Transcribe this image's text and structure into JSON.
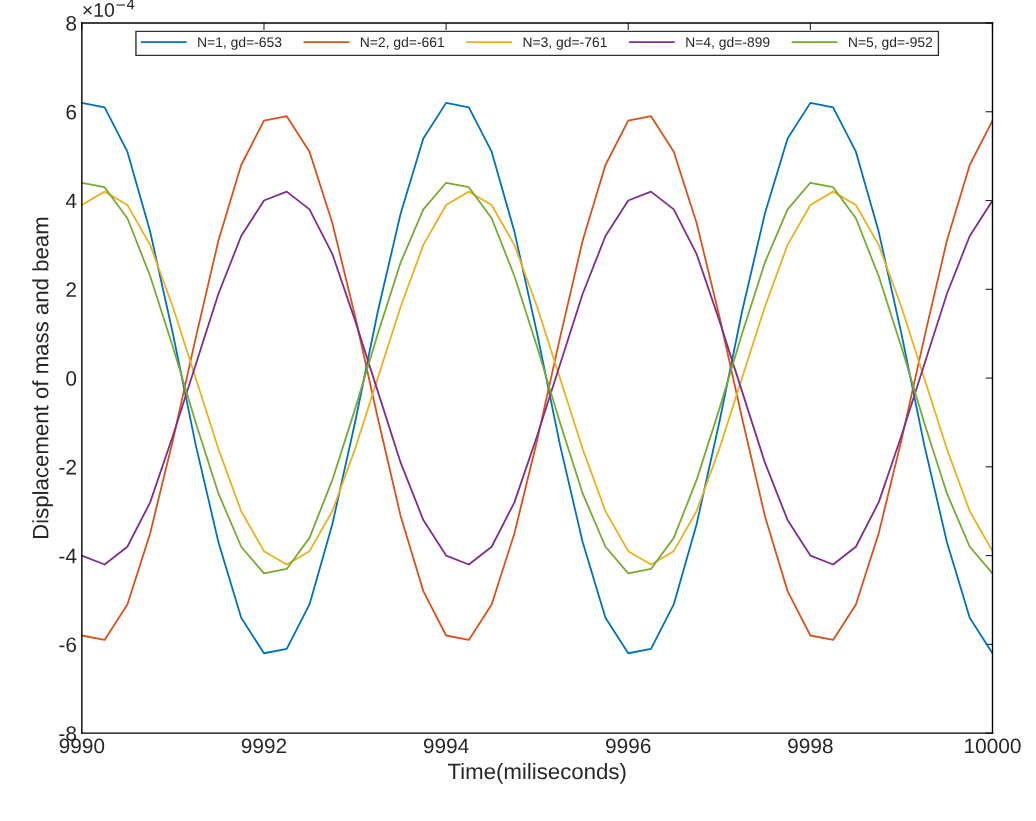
{
  "chart_data": {
    "type": "line",
    "xlabel": "Time(miliseconds)",
    "ylabel": "Displacement of mass and beam",
    "annotations": [
      "×10$^{−4}$"
    ],
    "x": [
      9990,
      9990.25,
      9990.5,
      9990.75,
      9991,
      9991.25,
      9991.5,
      9991.75,
      9992,
      9992.25,
      9992.5,
      9992.75,
      9993,
      9993.25,
      9993.5,
      9993.75,
      9994,
      9994.25,
      9994.5,
      9994.75,
      9995,
      9995.25,
      9995.5,
      9995.75,
      9996,
      9996.25,
      9996.5,
      9996.75,
      9997,
      9997.25,
      9997.5,
      9997.75,
      9998,
      9998.25,
      9998.5,
      9998.75,
      9999,
      9999.25,
      9999.5,
      9999.75,
      10000
    ],
    "series": [
      {
        "name": "N=1, gd=-653",
        "color": "#0072bd",
        "values": [
          6.2,
          6.1,
          5.1,
          3.3,
          1.0,
          -1.5,
          -3.7,
          -5.4,
          -6.2,
          -6.1,
          -5.1,
          -3.3,
          -1.0,
          1.5,
          3.7,
          5.4,
          6.2,
          6.1,
          5.1,
          3.3,
          1.0,
          -1.5,
          -3.7,
          -5.4,
          -6.2,
          -6.1,
          -5.1,
          -3.3,
          -1.0,
          1.5,
          3.7,
          5.4,
          6.2,
          6.1,
          5.1,
          3.3,
          1.0,
          -1.5,
          -3.7,
          -5.4,
          -6.2
        ]
      },
      {
        "name": "N=2, gd=-661",
        "color": "#d95319",
        "values": [
          -5.8,
          -5.9,
          -5.1,
          -3.5,
          -1.4,
          0.9,
          3.1,
          4.8,
          5.8,
          5.9,
          5.1,
          3.5,
          1.4,
          -0.9,
          -3.1,
          -4.8,
          -5.8,
          -5.9,
          -5.1,
          -3.5,
          -1.4,
          0.9,
          3.1,
          4.8,
          5.8,
          5.9,
          5.1,
          3.5,
          1.4,
          -0.9,
          -3.1,
          -4.8,
          -5.8,
          -5.9,
          -5.1,
          -3.5,
          -1.4,
          0.9,
          3.1,
          4.8,
          5.8
        ]
      },
      {
        "name": "N=3, gd=-761",
        "color": "#edb120",
        "values": [
          3.9,
          4.2,
          3.9,
          3.0,
          1.6,
          0.0,
          -1.6,
          -3.0,
          -3.9,
          -4.2,
          -3.9,
          -3.0,
          -1.6,
          0.0,
          1.6,
          3.0,
          3.9,
          4.2,
          3.9,
          3.0,
          1.6,
          0.0,
          -1.6,
          -3.0,
          -3.9,
          -4.2,
          -3.9,
          -3.0,
          -1.6,
          0.0,
          1.6,
          3.0,
          3.9,
          4.2,
          3.9,
          3.0,
          1.6,
          0.0,
          -1.6,
          -3.0,
          -3.9
        ]
      },
      {
        "name": "N=4, gd=-899",
        "color": "#7e2f8e",
        "values": [
          -4.0,
          -4.2,
          -3.8,
          -2.8,
          -1.3,
          0.3,
          1.9,
          3.2,
          4.0,
          4.2,
          3.8,
          2.8,
          1.3,
          -0.3,
          -1.9,
          -3.2,
          -4.0,
          -4.2,
          -3.8,
          -2.8,
          -1.3,
          0.3,
          1.9,
          3.2,
          4.0,
          4.2,
          3.8,
          2.8,
          1.3,
          -0.3,
          -1.9,
          -3.2,
          -4.0,
          -4.2,
          -3.8,
          -2.8,
          -1.3,
          0.3,
          1.9,
          3.2,
          4.0
        ]
      },
      {
        "name": "N=5, gd=-952",
        "color": "#77ac30",
        "values": [
          4.4,
          4.3,
          3.6,
          2.3,
          0.7,
          -1.0,
          -2.6,
          -3.8,
          -4.4,
          -4.3,
          -3.6,
          -2.3,
          -0.7,
          1.0,
          2.6,
          3.8,
          4.4,
          4.3,
          3.6,
          2.3,
          0.7,
          -1.0,
          -2.6,
          -3.8,
          -4.4,
          -4.3,
          -3.6,
          -2.3,
          -0.7,
          1.0,
          2.6,
          3.8,
          4.4,
          4.3,
          3.6,
          2.3,
          0.7,
          -1.0,
          -2.6,
          -3.8,
          -4.4
        ]
      }
    ],
    "xlim": [
      9990,
      10000
    ],
    "xticks": [
      9990,
      9992,
      9994,
      9996,
      9998,
      10000
    ],
    "ylim": [
      -8,
      8
    ],
    "yticks": [
      -8,
      -6,
      -4,
      -2,
      0,
      2,
      4,
      6,
      8
    ],
    "grid": false,
    "legend": "top",
    "marker": "none",
    "line_style": "solid"
  }
}
